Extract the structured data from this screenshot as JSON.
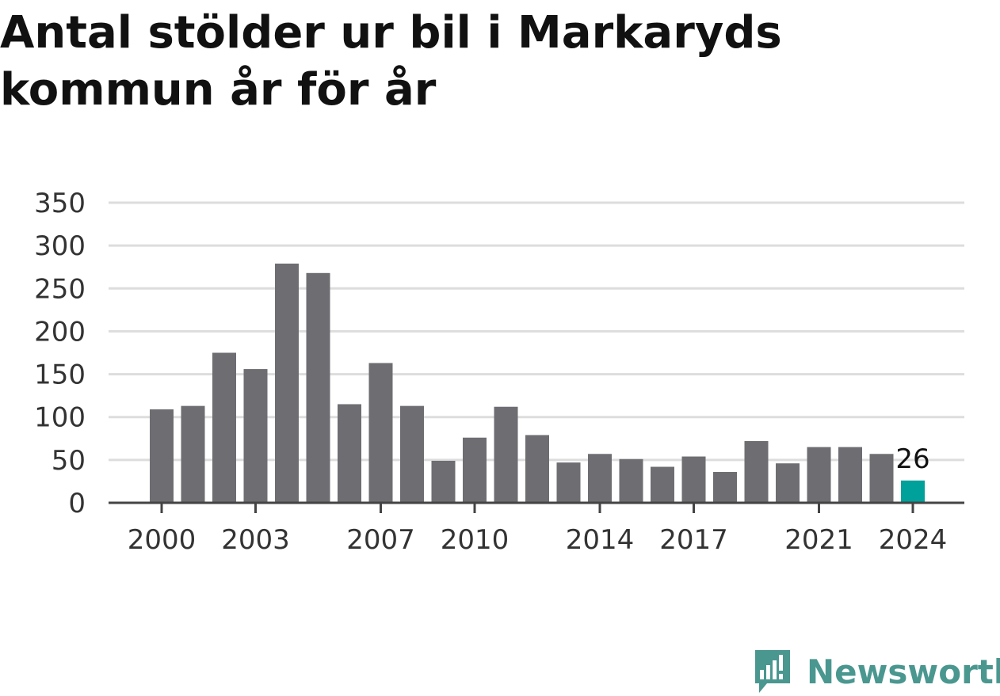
{
  "chart_data": {
    "type": "bar",
    "title": "Antal stölder ur bil i Markaryds kommun år för år",
    "xlabel": "",
    "ylabel": "",
    "categories": [
      "2000",
      "2001",
      "2002",
      "2003",
      "2004",
      "2005",
      "2006",
      "2007",
      "2008",
      "2009",
      "2010",
      "2011",
      "2012",
      "2013",
      "2014",
      "2015",
      "2016",
      "2017",
      "2018",
      "2019",
      "2020",
      "2021",
      "2022",
      "2023",
      "2024"
    ],
    "values": [
      109,
      113,
      175,
      156,
      279,
      268,
      115,
      163,
      113,
      49,
      76,
      112,
      79,
      47,
      57,
      51,
      42,
      54,
      36,
      72,
      46,
      65,
      65,
      57,
      26
    ],
    "ylim": [
      0,
      350
    ],
    "yticks": [
      0,
      50,
      100,
      150,
      200,
      250,
      300,
      350
    ],
    "xticks": [
      "2000",
      "2003",
      "2007",
      "2010",
      "2014",
      "2017",
      "2021",
      "2024"
    ],
    "grid": true,
    "highlight": {
      "category": "2024",
      "label": "26"
    },
    "colors": {
      "bar": "#6e6d72",
      "highlight": "#00a19a",
      "grid": "#dddddd",
      "axis": "#444444"
    }
  },
  "brand": {
    "name": "Newsworthy",
    "color": "#4a9790"
  }
}
